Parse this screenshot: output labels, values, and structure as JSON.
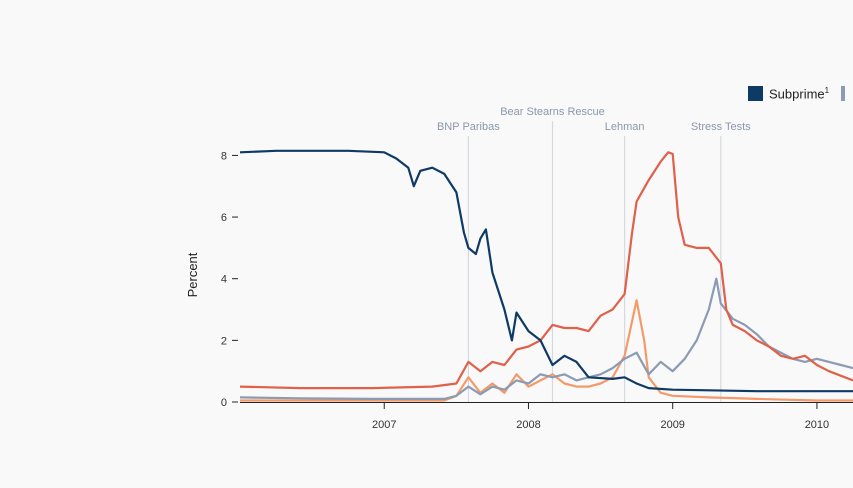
{
  "chart_data": {
    "type": "line",
    "ylabel": "Percent",
    "ylim": [
      0,
      8.5
    ],
    "xlim": [
      "2006-01",
      "2010-04"
    ],
    "yticks": [
      0,
      2,
      4,
      6,
      8
    ],
    "xticks": [
      {
        "label": "2007",
        "date": "2007-01"
      },
      {
        "label": "2008",
        "date": "2008-01"
      },
      {
        "label": "2009",
        "date": "2009-01"
      },
      {
        "label": "2010",
        "date": "2010-01"
      }
    ],
    "grid": false,
    "legend": {
      "position": "top-right",
      "entries": [
        {
          "label": "Subprime",
          "superscript": "1",
          "color": "#0e3a66"
        }
      ]
    },
    "events": [
      {
        "label": "BNP Paribas",
        "date": "2007-08"
      },
      {
        "label": "Bear Stearns Rescue",
        "date": "2008-03"
      },
      {
        "label": "Lehman",
        "date": "2008-09"
      },
      {
        "label": "Stress Tests",
        "date": "2009-05"
      }
    ],
    "series": [
      {
        "color": "#0e3a66",
        "points": [
          [
            "2006-01",
            8.1
          ],
          [
            "2006-04",
            8.15
          ],
          [
            "2006-07",
            8.15
          ],
          [
            "2006-10",
            8.15
          ],
          [
            "2007-01",
            8.1
          ],
          [
            "2007-02",
            7.9
          ],
          [
            "2007-03",
            7.6
          ],
          [
            "2007-03-15",
            7.0
          ],
          [
            "2007-04",
            7.5
          ],
          [
            "2007-05",
            7.6
          ],
          [
            "2007-06",
            7.4
          ],
          [
            "2007-07",
            6.8
          ],
          [
            "2007-07-20",
            5.5
          ],
          [
            "2007-08",
            5.0
          ],
          [
            "2007-08-20",
            4.8
          ],
          [
            "2007-09",
            5.3
          ],
          [
            "2007-09-15",
            5.6
          ],
          [
            "2007-10",
            4.2
          ],
          [
            "2007-11",
            3.0
          ],
          [
            "2007-11-20",
            2.0
          ],
          [
            "2007-12",
            2.9
          ],
          [
            "2008-01",
            2.3
          ],
          [
            "2008-02",
            2.0
          ],
          [
            "2008-03",
            1.2
          ],
          [
            "2008-04",
            1.5
          ],
          [
            "2008-05",
            1.3
          ],
          [
            "2008-06",
            0.8
          ],
          [
            "2008-08",
            0.75
          ],
          [
            "2008-09",
            0.8
          ],
          [
            "2008-10",
            0.6
          ],
          [
            "2008-11",
            0.45
          ],
          [
            "2009-01",
            0.4
          ],
          [
            "2009-04",
            0.38
          ],
          [
            "2009-08",
            0.35
          ],
          [
            "2010-01",
            0.35
          ],
          [
            "2010-04",
            0.35
          ]
        ]
      },
      {
        "color": "#e0604a",
        "points": [
          [
            "2006-01",
            0.5
          ],
          [
            "2006-06",
            0.45
          ],
          [
            "2006-12",
            0.45
          ],
          [
            "2007-05",
            0.5
          ],
          [
            "2007-07",
            0.6
          ],
          [
            "2007-08",
            1.3
          ],
          [
            "2007-09",
            1.0
          ],
          [
            "2007-10",
            1.3
          ],
          [
            "2007-11",
            1.2
          ],
          [
            "2007-12",
            1.7
          ],
          [
            "2008-01",
            1.8
          ],
          [
            "2008-02",
            2.0
          ],
          [
            "2008-03",
            2.5
          ],
          [
            "2008-04",
            2.4
          ],
          [
            "2008-05",
            2.4
          ],
          [
            "2008-06",
            2.3
          ],
          [
            "2008-07",
            2.8
          ],
          [
            "2008-08",
            3.0
          ],
          [
            "2008-09",
            3.5
          ],
          [
            "2008-09-20",
            5.5
          ],
          [
            "2008-10",
            6.5
          ],
          [
            "2008-11",
            7.2
          ],
          [
            "2008-12",
            7.8
          ],
          [
            "2008-12-20",
            8.1
          ],
          [
            "2009-01",
            8.05
          ],
          [
            "2009-01-15",
            6.0
          ],
          [
            "2009-02",
            5.1
          ],
          [
            "2009-03",
            5.0
          ],
          [
            "2009-04",
            5.0
          ],
          [
            "2009-05",
            4.5
          ],
          [
            "2009-05-15",
            3.0
          ],
          [
            "2009-06",
            2.5
          ],
          [
            "2009-07",
            2.3
          ],
          [
            "2009-08",
            2.0
          ],
          [
            "2009-09",
            1.8
          ],
          [
            "2009-10",
            1.5
          ],
          [
            "2009-11",
            1.4
          ],
          [
            "2009-12",
            1.5
          ],
          [
            "2010-01",
            1.2
          ],
          [
            "2010-02",
            1.0
          ],
          [
            "2010-03",
            0.85
          ],
          [
            "2010-04",
            0.7
          ]
        ]
      },
      {
        "color": "#8a9bb3",
        "points": [
          [
            "2006-01",
            0.15
          ],
          [
            "2006-06",
            0.12
          ],
          [
            "2006-12",
            0.1
          ],
          [
            "2007-06",
            0.1
          ],
          [
            "2007-07",
            0.2
          ],
          [
            "2007-08",
            0.5
          ],
          [
            "2007-09",
            0.25
          ],
          [
            "2007-10",
            0.5
          ],
          [
            "2007-11",
            0.4
          ],
          [
            "2007-12",
            0.7
          ],
          [
            "2008-01",
            0.6
          ],
          [
            "2008-02",
            0.9
          ],
          [
            "2008-03",
            0.8
          ],
          [
            "2008-04",
            0.9
          ],
          [
            "2008-05",
            0.7
          ],
          [
            "2008-06",
            0.8
          ],
          [
            "2008-07",
            0.9
          ],
          [
            "2008-08",
            1.1
          ],
          [
            "2008-09",
            1.4
          ],
          [
            "2008-10",
            1.6
          ],
          [
            "2008-11",
            0.9
          ],
          [
            "2008-12",
            1.3
          ],
          [
            "2009-01",
            1.0
          ],
          [
            "2009-02",
            1.4
          ],
          [
            "2009-03",
            2.0
          ],
          [
            "2009-04",
            3.0
          ],
          [
            "2009-04-20",
            4.0
          ],
          [
            "2009-05",
            3.2
          ],
          [
            "2009-06",
            2.7
          ],
          [
            "2009-07",
            2.5
          ],
          [
            "2009-08",
            2.2
          ],
          [
            "2009-09",
            1.8
          ],
          [
            "2009-10",
            1.6
          ],
          [
            "2009-11",
            1.4
          ],
          [
            "2009-12",
            1.3
          ],
          [
            "2010-01",
            1.4
          ],
          [
            "2010-02",
            1.3
          ],
          [
            "2010-03",
            1.2
          ],
          [
            "2010-04",
            1.1
          ]
        ]
      },
      {
        "color": "#f49a6a",
        "points": [
          [
            "2006-01",
            0.05
          ],
          [
            "2006-06",
            0.05
          ],
          [
            "2007-06",
            0.05
          ],
          [
            "2007-07",
            0.2
          ],
          [
            "2007-08",
            0.8
          ],
          [
            "2007-09",
            0.3
          ],
          [
            "2007-10",
            0.6
          ],
          [
            "2007-11",
            0.3
          ],
          [
            "2007-12",
            0.9
          ],
          [
            "2008-01",
            0.5
          ],
          [
            "2008-02",
            0.7
          ],
          [
            "2008-03",
            0.9
          ],
          [
            "2008-04",
            0.6
          ],
          [
            "2008-05",
            0.5
          ],
          [
            "2008-06",
            0.5
          ],
          [
            "2008-07",
            0.6
          ],
          [
            "2008-08",
            0.8
          ],
          [
            "2008-09",
            1.5
          ],
          [
            "2008-10",
            3.3
          ],
          [
            "2008-10-20",
            2.0
          ],
          [
            "2008-11",
            0.8
          ],
          [
            "2008-12",
            0.3
          ],
          [
            "2009-01",
            0.2
          ],
          [
            "2009-04",
            0.15
          ],
          [
            "2009-08",
            0.1
          ],
          [
            "2010-01",
            0.05
          ],
          [
            "2010-04",
            0.05
          ]
        ]
      }
    ]
  }
}
